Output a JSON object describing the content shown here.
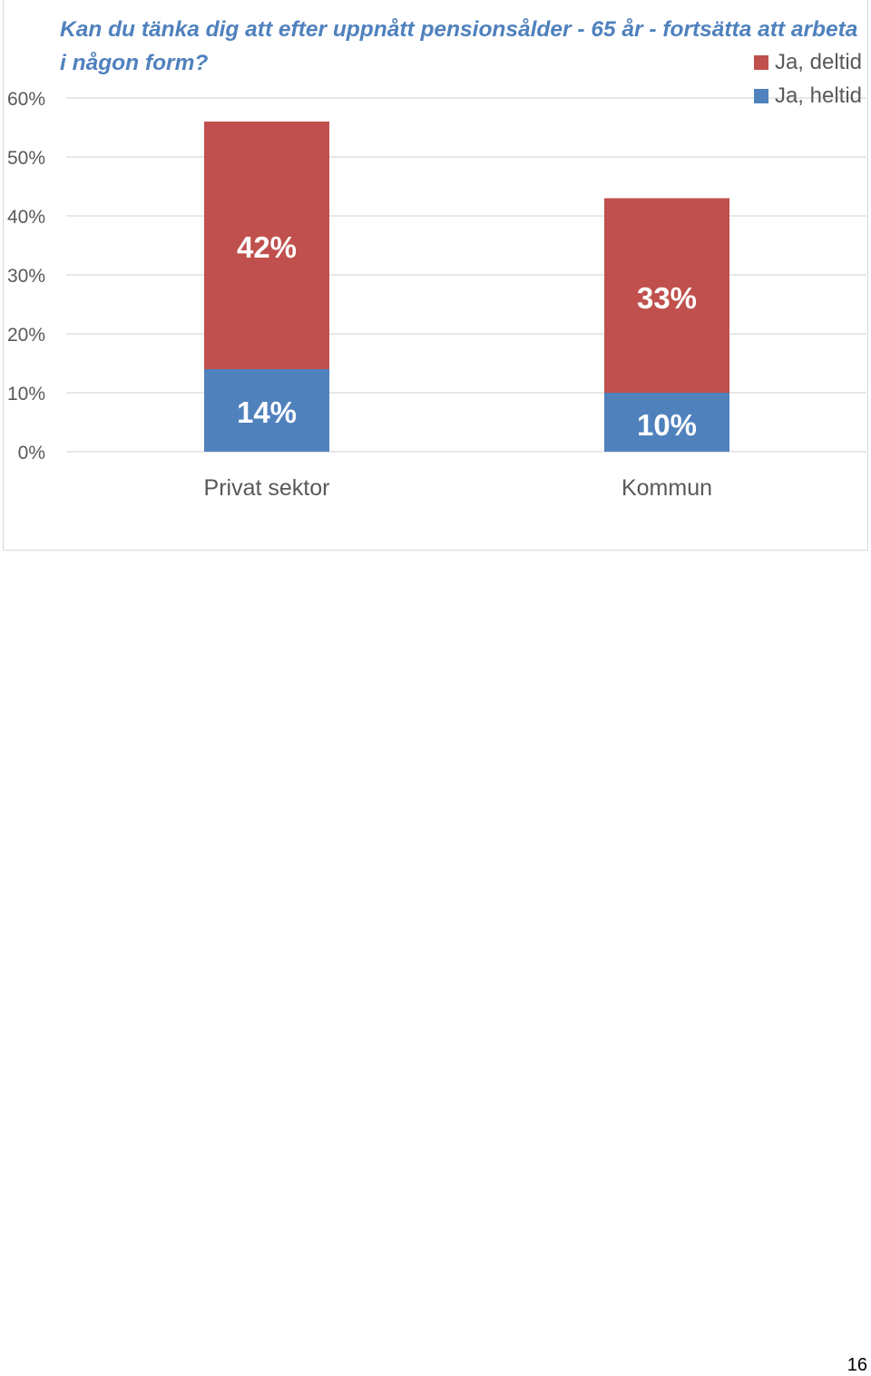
{
  "chart_data": {
    "type": "bar",
    "stacked": true,
    "title": "Kan du tänka dig att efter uppnått pensionsålder - 65 år - fortsätta att arbeta i någon form?",
    "categories": [
      "Privat sektor",
      "Kommun"
    ],
    "series": [
      {
        "name": "Ja, heltid",
        "color": "#4f81bd",
        "values": [
          14,
          10
        ],
        "labels": [
          "14%",
          "10%"
        ]
      },
      {
        "name": "Ja, deltid",
        "color": "#c0504d",
        "values": [
          42,
          33
        ],
        "labels": [
          "42%",
          "33%"
        ]
      }
    ],
    "ylim": [
      0,
      60
    ],
    "yticks": [
      0,
      10,
      20,
      30,
      40,
      50,
      60
    ],
    "ytick_labels": [
      "0%",
      "10%",
      "20%",
      "30%",
      "40%",
      "50%",
      "60%"
    ],
    "grid": true,
    "legend": {
      "position": "top-right",
      "order": [
        "Ja, deltid",
        "Ja, heltid"
      ]
    },
    "xlabel": "",
    "ylabel": ""
  },
  "page": {
    "number": "16"
  }
}
